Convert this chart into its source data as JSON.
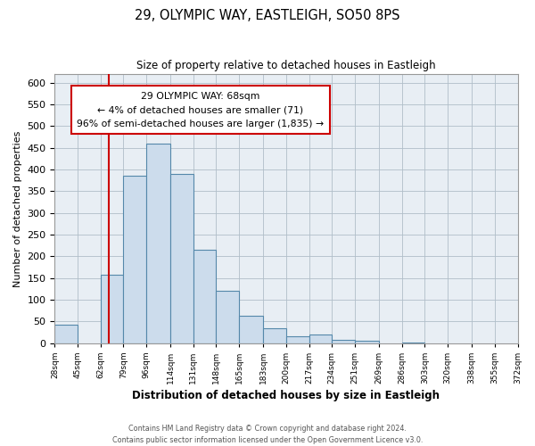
{
  "title": "29, OLYMPIC WAY, EASTLEIGH, SO50 8PS",
  "subtitle": "Size of property relative to detached houses in Eastleigh",
  "xlabel": "Distribution of detached houses by size in Eastleigh",
  "ylabel": "Number of detached properties",
  "bar_color": "#ccdcec",
  "bar_edge_color": "#5588aa",
  "bin_labels": [
    "28sqm",
    "45sqm",
    "62sqm",
    "79sqm",
    "96sqm",
    "114sqm",
    "131sqm",
    "148sqm",
    "165sqm",
    "183sqm",
    "200sqm",
    "217sqm",
    "234sqm",
    "251sqm",
    "269sqm",
    "286sqm",
    "303sqm",
    "320sqm",
    "338sqm",
    "355sqm",
    "372sqm"
  ],
  "bin_edges": [
    28,
    45,
    62,
    79,
    96,
    114,
    131,
    148,
    165,
    183,
    200,
    217,
    234,
    251,
    269,
    286,
    303,
    320,
    338,
    355,
    372
  ],
  "bar_heights": [
    42,
    0,
    158,
    385,
    460,
    390,
    215,
    120,
    62,
    35,
    15,
    20,
    7,
    5,
    0,
    2,
    0,
    0,
    0,
    0
  ],
  "ylim": [
    0,
    620
  ],
  "yticks": [
    0,
    50,
    100,
    150,
    200,
    250,
    300,
    350,
    400,
    450,
    500,
    550,
    600
  ],
  "vline_x": 68,
  "vline_color": "#cc0000",
  "annotation_line1": "29 OLYMPIC WAY: 68sqm",
  "annotation_line2": "← 4% of detached houses are smaller (71)",
  "annotation_line3": "96% of semi-detached houses are larger (1,835) →",
  "annotation_box_color": "#ffffff",
  "annotation_box_edge": "#cc0000",
  "footer_line1": "Contains HM Land Registry data © Crown copyright and database right 2024.",
  "footer_line2": "Contains public sector information licensed under the Open Government Licence v3.0.",
  "background_color": "#ffffff",
  "plot_bg_color": "#e8eef4",
  "grid_color": "#b0bec8"
}
